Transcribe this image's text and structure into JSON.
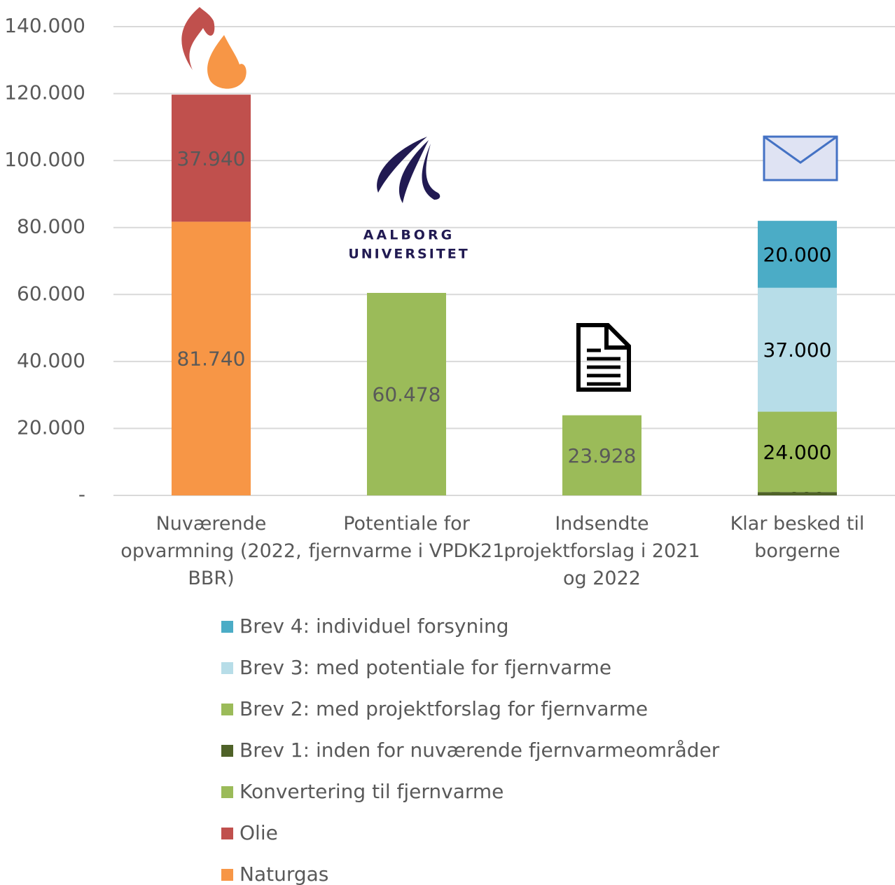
{
  "chart_data": {
    "type": "bar",
    "stacked": true,
    "categories": [
      "Nuværende opvarmning (2022, BBR)",
      "Potentiale for fjernvarme i VPDK21",
      "Indsendte projektforslag i 2021 og 2022",
      "Klar besked til borgerne"
    ],
    "series": [
      {
        "name": "Naturgas",
        "color": "#f79646",
        "values": [
          81740,
          null,
          null,
          null
        ],
        "value_labels": [
          "81.740",
          null,
          null,
          null
        ]
      },
      {
        "name": "Olie",
        "color": "#c0504d",
        "values": [
          37940,
          null,
          null,
          null
        ],
        "value_labels": [
          "37.940",
          null,
          null,
          null
        ]
      },
      {
        "name": "Konvertering til fjernvarme",
        "color": "#9bbb59",
        "values": [
          null,
          60478,
          23928,
          null
        ],
        "value_labels": [
          null,
          "60.478",
          "23.928",
          null
        ]
      },
      {
        "name": "Brev 1: inden for nuværende fjernvarmeområder",
        "color": "#4f6228",
        "values": [
          null,
          null,
          null,
          1000
        ],
        "value_labels": [
          null,
          null,
          null,
          "1.000"
        ]
      },
      {
        "name": "Brev 2: med projektforslag for fjernvarme",
        "color": "#9bbb59",
        "values": [
          null,
          null,
          null,
          24000
        ],
        "value_labels": [
          null,
          null,
          null,
          "24.000"
        ]
      },
      {
        "name": "Brev 3: med potentiale for fjernvarme",
        "color": "#b7dde8",
        "values": [
          null,
          null,
          null,
          37000
        ],
        "value_labels": [
          null,
          null,
          null,
          "37.000"
        ]
      },
      {
        "name": "Brev 4: individuel forsyning",
        "color": "#4bacc6",
        "values": [
          null,
          null,
          null,
          20000
        ],
        "value_labels": [
          null,
          null,
          null,
          "20.000"
        ]
      }
    ],
    "ylim": [
      0,
      140000
    ],
    "yticks": [
      {
        "value": 0,
        "label": "-"
      },
      {
        "value": 20000,
        "label": "20.000"
      },
      {
        "value": 40000,
        "label": "40.000"
      },
      {
        "value": 60000,
        "label": "60.000"
      },
      {
        "value": 80000,
        "label": "80.000"
      },
      {
        "value": 100000,
        "label": "100.000"
      },
      {
        "value": 120000,
        "label": "120.000"
      },
      {
        "value": 140000,
        "label": "140.000"
      }
    ],
    "grid": true,
    "legend": "bottom",
    "logo_lines": [
      "AALBORG",
      "UNIVERSITET"
    ]
  }
}
